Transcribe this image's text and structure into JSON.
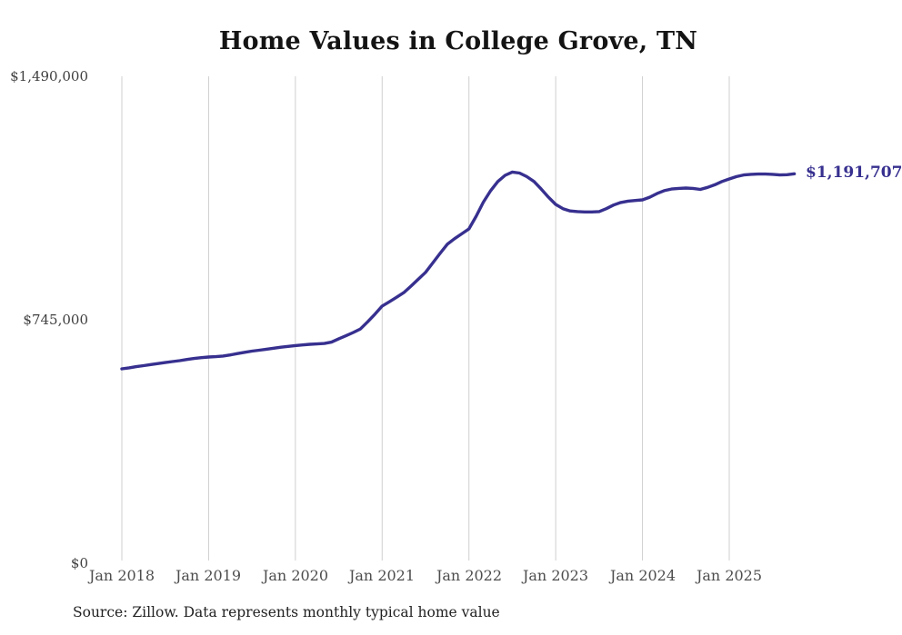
{
  "title": "Home Values in College Grove, TN",
  "source_note": "Source: Zillow. Data represents monthly typical home value",
  "colors": {
    "line": "#37308f",
    "grid": "#cfcfcf",
    "title_text": "#141414",
    "axis_text": "#4d4d4d",
    "annotation_text": "#37308f",
    "background": "#ffffff"
  },
  "chart_data": {
    "type": "line",
    "title": "Home Values in College Grove, TN",
    "xlabel": "",
    "ylabel": "",
    "ylim": [
      0,
      1490000
    ],
    "grid": "vertical-only",
    "legend": "none",
    "y_tick_labels": [
      "$1,490,000",
      "$745,000",
      "$0"
    ],
    "y_tick_values": [
      1490000,
      745000,
      0
    ],
    "x_tick_labels": [
      "Jan 2018",
      "Jan 2019",
      "Jan 2020",
      "Jan 2021",
      "Jan 2022",
      "Jan 2023",
      "Jan 2024",
      "Jan 2025"
    ],
    "end_annotation": "$1,191,707",
    "series": [
      {
        "name": "Monthly typical home value",
        "months": [
          "2018-01",
          "2018-02",
          "2018-03",
          "2018-04",
          "2018-05",
          "2018-06",
          "2018-07",
          "2018-08",
          "2018-09",
          "2018-10",
          "2018-11",
          "2018-12",
          "2019-01",
          "2019-02",
          "2019-03",
          "2019-04",
          "2019-05",
          "2019-06",
          "2019-07",
          "2019-08",
          "2019-09",
          "2019-10",
          "2019-11",
          "2019-12",
          "2020-01",
          "2020-02",
          "2020-03",
          "2020-04",
          "2020-05",
          "2020-06",
          "2020-07",
          "2020-08",
          "2020-09",
          "2020-10",
          "2020-11",
          "2020-12",
          "2021-01",
          "2021-02",
          "2021-03",
          "2021-04",
          "2021-05",
          "2021-06",
          "2021-07",
          "2021-08",
          "2021-09",
          "2021-10",
          "2021-11",
          "2021-12",
          "2022-01",
          "2022-02",
          "2022-03",
          "2022-04",
          "2022-05",
          "2022-06",
          "2022-07",
          "2022-08",
          "2022-09",
          "2022-10",
          "2022-11",
          "2022-12",
          "2023-01",
          "2023-02",
          "2023-03",
          "2023-04",
          "2023-05",
          "2023-06",
          "2023-07",
          "2023-08",
          "2023-09",
          "2023-10",
          "2023-11",
          "2023-12",
          "2024-01",
          "2024-02",
          "2024-03",
          "2024-04",
          "2024-05",
          "2024-06",
          "2024-07",
          "2024-08",
          "2024-09",
          "2024-10",
          "2024-11",
          "2024-12",
          "2025-01",
          "2025-02",
          "2025-03",
          "2025-04",
          "2025-05",
          "2025-06",
          "2025-07",
          "2025-08",
          "2025-09",
          "2025-10"
        ],
        "values": [
          595000,
          598000,
          601500,
          604500,
          608000,
          611000,
          614000,
          617000,
          620000,
          623500,
          626500,
          629000,
          631000,
          632000,
          634000,
          637500,
          641500,
          645500,
          649000,
          652000,
          655000,
          658000,
          661000,
          663500,
          666000,
          668000,
          670000,
          671000,
          672500,
          676500,
          687000,
          696000,
          706000,
          717000,
          739000,
          762000,
          787000,
          800000,
          814000,
          828000,
          848000,
          869000,
          890000,
          919000,
          948000,
          976000,
          993000,
          1008000,
          1023000,
          1062000,
          1105000,
          1140000,
          1168000,
          1187000,
          1197000,
          1194000,
          1183000,
          1168000,
          1145000,
          1120000,
          1098000,
          1085000,
          1078000,
          1076000,
          1075000,
          1075000,
          1076000,
          1085000,
          1096000,
          1104000,
          1108000,
          1110000,
          1112000,
          1120000,
          1131000,
          1140000,
          1145000,
          1147000,
          1148000,
          1147000,
          1144000,
          1150000,
          1158000,
          1168000,
          1176000,
          1183000,
          1188000,
          1190000,
          1191000,
          1191000,
          1190000,
          1188000,
          1189000,
          1191707
        ]
      }
    ]
  }
}
